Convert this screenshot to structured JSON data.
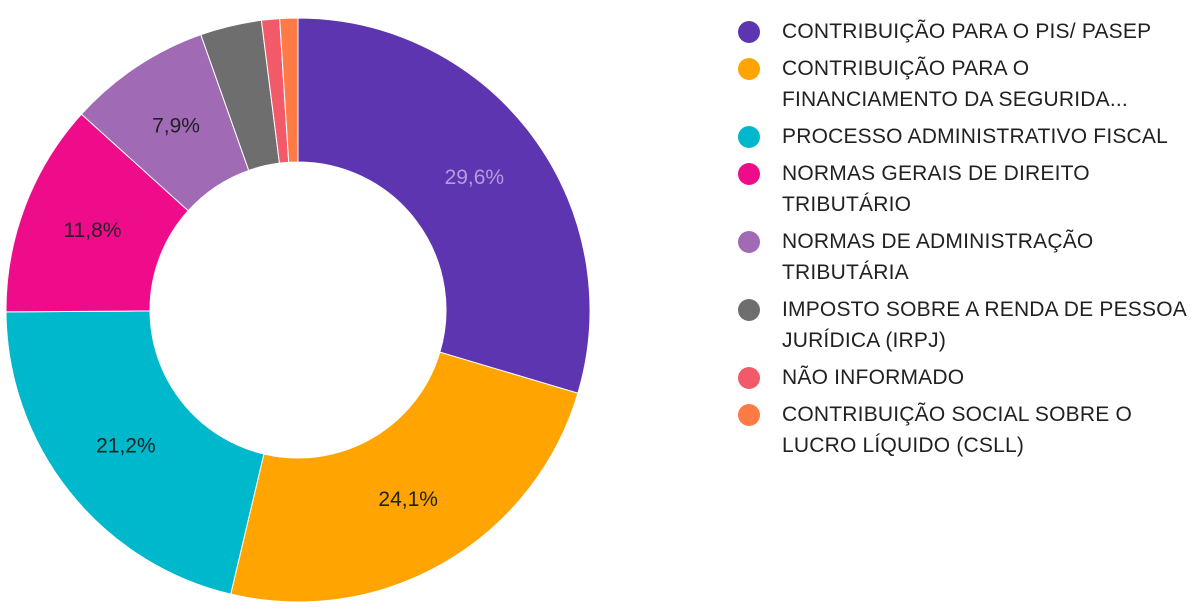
{
  "chart_data": {
    "type": "pie",
    "title": "",
    "donut": true,
    "legend_position": "right",
    "slices": [
      {
        "label": "CONTRIBUIÇÃO PARA O PIS/ PASEP",
        "value": 29.6,
        "value_label": "29,6%",
        "color": "#5e35b1",
        "label_color": "#b39ddb"
      },
      {
        "label": "CONTRIBUIÇÃO PARA O FINANCIAMENTO DA SEGURIDA...",
        "value": 24.1,
        "value_label": "24,1%",
        "color": "#ffa400",
        "label_color": "#212121"
      },
      {
        "label": "PROCESSO ADMINISTRATIVO FISCAL",
        "value": 21.2,
        "value_label": "21,2%",
        "color": "#00b8cc",
        "label_color": "#212121"
      },
      {
        "label": "NORMAS GERAIS DE DIREITO TRIBUTÁRIO",
        "value": 11.8,
        "value_label": "11,8%",
        "color": "#ef0c8a",
        "label_color": "#212121"
      },
      {
        "label": "NORMAS DE ADMINISTRAÇÃO TRIBUTÁRIA",
        "value": 7.9,
        "value_label": "7,9%",
        "color": "#a06ab4",
        "label_color": "#212121"
      },
      {
        "label": "IMPOSTO SOBRE A RENDA DE PESSOA JURÍDICA (IRPJ)",
        "value": 3.4,
        "value_label": "",
        "color": "#6e6e6e",
        "label_color": "#212121"
      },
      {
        "label": "NÃO INFORMADO",
        "value": 1.0,
        "value_label": "",
        "color": "#f25a6a",
        "label_color": "#212121"
      },
      {
        "label": "CONTRIBUIÇÃO SOCIAL SOBRE O LUCRO LÍQUIDO (CSLL)",
        "value": 1.0,
        "value_label": "",
        "color": "#ff7a45",
        "label_color": "#212121"
      }
    ]
  }
}
